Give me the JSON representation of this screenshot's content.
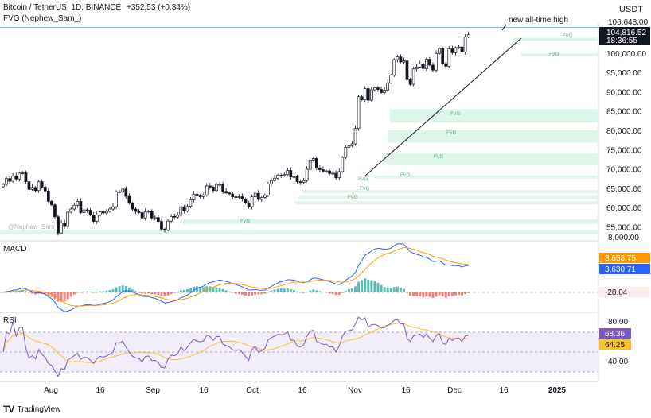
{
  "header": {
    "symbol_line": "Bitcoin / TetherUS, 1D, BINANCE",
    "change": "+352.53 (+0.34%)",
    "indicator_line": "FVG (Nephew_Sam_)"
  },
  "currency": "USDT",
  "brand": "TradingView",
  "watermark": "@Nephew_Sam_",
  "annotations": {
    "ath": "new all-time high",
    "fvg": "FVG"
  },
  "price_labels": {
    "ath": "106,648.00",
    "last": "104,816.52",
    "countdown": "18:36:55"
  },
  "macd": {
    "title": "MACD",
    "v1": "3,658.75",
    "v2": "3,630.71",
    "hist": "-28.04"
  },
  "rsi": {
    "title": "RSI",
    "v1": "68.36",
    "v2": "64.25"
  },
  "colors": {
    "up": "#26a69a",
    "down": "#ef5350",
    "fvg": "#dff5ea",
    "fvg_text": "#4caf78",
    "macd_line": "#2962ff",
    "signal_line": "#ff9800",
    "rsi_line": "#7e57c2",
    "rsi_ma": "#fbc02d",
    "ath_line": "#5fc3f0"
  },
  "chart_data": {
    "type": "candlestick",
    "x_tick_labels": [
      "Aug",
      "16",
      "Sep",
      "16",
      "Oct",
      "16",
      "Nov",
      "16",
      "Dec",
      "16",
      "2025"
    ],
    "y_tick_labels": [
      "100,000.00",
      "95,000.00",
      "90,000.00",
      "85,000.00",
      "80,000.00",
      "75,000.00",
      "70,000.00",
      "65,000.00",
      "60,000.00",
      "55,000.00"
    ],
    "y_ticks": [
      100000,
      95000,
      90000,
      85000,
      80000,
      75000,
      70000,
      65000,
      60000,
      55000
    ],
    "ylim": [
      52000,
      108000
    ],
    "close": [
      66000,
      67500,
      66800,
      68200,
      67400,
      68900,
      69000,
      66700,
      64700,
      65200,
      64400,
      66700,
      65300,
      64300,
      61600,
      60700,
      57600,
      53400,
      56000,
      55100,
      58800,
      59600,
      60600,
      61600,
      58700,
      59400,
      59300,
      58100,
      56400,
      58100,
      58900,
      58600,
      59000,
      59600,
      60200,
      64100,
      64000,
      64800,
      62900,
      61100,
      59600,
      59000,
      58700,
      57300,
      58900,
      59100,
      57300,
      57400,
      56400,
      54400,
      54200,
      56500,
      57700,
      57500,
      58000,
      60200,
      59100,
      60300,
      62000,
      63500,
      63000,
      62800,
      63200,
      65600,
      65300,
      64400,
      66000,
      66000,
      64200,
      63800,
      63500,
      62800,
      62600,
      62800,
      62200,
      61200,
      60200,
      62800,
      63700,
      62100,
      62600,
      63200,
      66100,
      67000,
      67600,
      68400,
      68300,
      68500,
      69600,
      67900,
      68000,
      66700,
      66500,
      67000,
      69900,
      72300,
      72700,
      70200,
      69800,
      69400,
      69500,
      68800,
      68900,
      67700,
      69300,
      73000,
      75600,
      76000,
      76500,
      80500,
      88700,
      87900,
      90800,
      87800,
      90500,
      91000,
      90600,
      89800,
      90400,
      92300,
      94300,
      98300,
      99000,
      97700,
      98000,
      93100,
      91900,
      95900,
      96400,
      97200,
      96000,
      98400,
      96900,
      95600,
      99900,
      101200,
      97300,
      96600,
      101100,
      100100,
      101400,
      101600,
      100300,
      104200,
      104800
    ]
  }
}
